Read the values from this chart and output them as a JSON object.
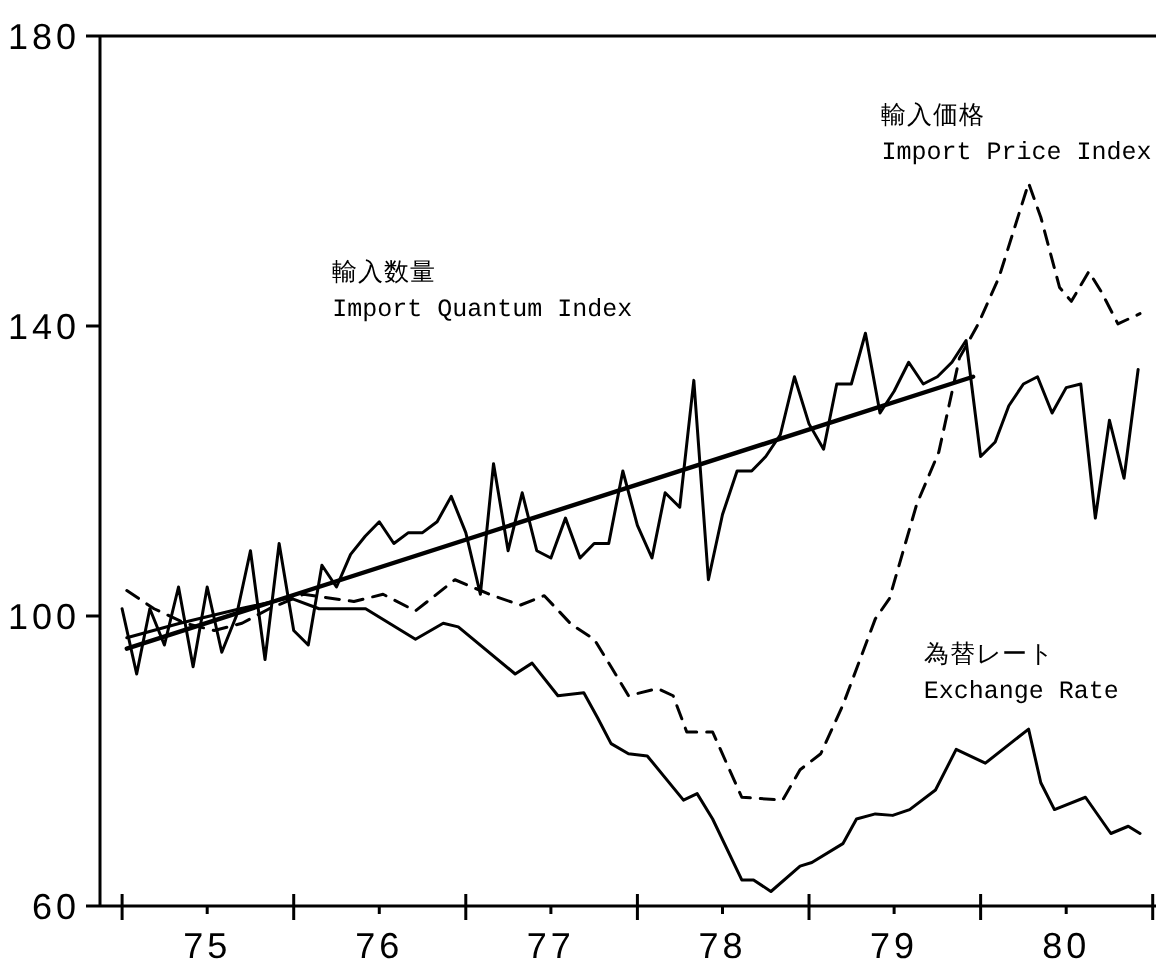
{
  "chart_data": {
    "type": "line",
    "x": [
      "1975-01",
      "1975-02",
      "1975-03",
      "1975-04",
      "1975-05",
      "1975-06",
      "1975-07",
      "1975-08",
      "1975-09",
      "1975-10",
      "1975-11",
      "1975-12",
      "1976-01",
      "1976-02",
      "1976-03",
      "1976-04",
      "1976-05",
      "1976-06",
      "1976-07",
      "1976-08",
      "1976-09",
      "1976-10",
      "1976-11",
      "1976-12",
      "1977-01",
      "1977-02",
      "1977-03",
      "1977-04",
      "1977-05",
      "1977-06",
      "1977-07",
      "1977-08",
      "1977-09",
      "1977-10",
      "1977-11",
      "1977-12",
      "1978-01",
      "1978-02",
      "1978-03",
      "1978-04",
      "1978-05",
      "1978-06",
      "1978-07",
      "1978-08",
      "1978-09",
      "1978-10",
      "1978-11",
      "1978-12",
      "1979-01",
      "1979-02",
      "1979-03",
      "1979-04",
      "1979-05",
      "1979-06",
      "1979-07",
      "1979-08",
      "1979-09",
      "1979-10",
      "1979-11",
      "1979-12",
      "1980-01",
      "1980-02",
      "1980-03",
      "1980-04",
      "1980-05",
      "1980-06",
      "1980-07",
      "1980-08",
      "1980-09",
      "1980-10",
      "1980-11",
      "1980-12"
    ],
    "series": [
      {
        "color": "#000000",
        "values": [
          101,
          92,
          101,
          96,
          104,
          93,
          104,
          95,
          100,
          109,
          94,
          110,
          98,
          96,
          107,
          104,
          108.5,
          111,
          113,
          110,
          111.5,
          111.5,
          113,
          116.5,
          111.5,
          103,
          121,
          109,
          117,
          109,
          108,
          113.5,
          108,
          110,
          110,
          120,
          112.5,
          108,
          117,
          115,
          132.5,
          105,
          114,
          120,
          120,
          122,
          125,
          133,
          126.5,
          123,
          132,
          132,
          139,
          128,
          131,
          135,
          132,
          133,
          135,
          138,
          122,
          124,
          129,
          132,
          133,
          128,
          131.5,
          132,
          113.5,
          127,
          119,
          134
        ]
      },
      {
        "color": "#000000",
        "x": [
          "1975-01-11",
          "1979-12-16"
        ],
        "values": [
          95.5,
          133
        ]
      },
      {
        "color": "#000000",
        "line_style": "dashed",
        "x": [
          "1975-01-11",
          "1975-03-10",
          "1975-05-15",
          "1975-07-16",
          "1975-09-13",
          "1975-11-10",
          "1976-01-22",
          "1976-05-08",
          "1976-07-09",
          "1976-09-16",
          "1976-12-09",
          "1977-02-20",
          "1977-04-27",
          "1977-06-17",
          "1977-08-14",
          "1977-10-01",
          "1977-11-06",
          "1977-12-13",
          "1978-02-13",
          "1978-03-18",
          "1978-04-16",
          "1978-06-10",
          "1978-08-11",
          "1978-11-06",
          "1978-12-13",
          "1979-01-26",
          "1979-03-14",
          "1979-05-22",
          "1979-06-21",
          "1979-08-18",
          "1979-10-04",
          "1979-11-17",
          "1979-12-27",
          "1980-02-09",
          "1980-04-12",
          "1980-05-08",
          "1980-06-17",
          "1980-07-12",
          "1980-08-18",
          "1980-09-13",
          "1980-10-19",
          "1980-12-05"
        ],
        "values": [
          103.5,
          101,
          99,
          98,
          99,
          101,
          103,
          102,
          103,
          100.7,
          105,
          103,
          101.5,
          102.8,
          98.8,
          96.8,
          93,
          89,
          90,
          89,
          84,
          84,
          75,
          74.6,
          78.8,
          81,
          87.7,
          99.6,
          102.4,
          115.4,
          122.6,
          135.6,
          140.3,
          146.7,
          159.7,
          155,
          145.3,
          143.4,
          147.5,
          144.8,
          140.3,
          141.7
        ]
      },
      {
        "color": "#000000",
        "x": [
          "1975-01-11",
          "1975-05-04",
          "1975-09-09",
          "1975-12-24",
          "1976-02-24",
          "1976-06-02",
          "1976-09-16",
          "1976-11-14",
          "1976-12-16",
          "1977-04-16",
          "1977-05-22",
          "1977-07-16",
          "1977-09-09",
          "1977-10-08",
          "1977-11-06",
          "1977-12-13",
          "1978-01-22",
          "1978-04-09",
          "1978-05-08",
          "1978-06-10",
          "1978-08-11",
          "1978-09-05",
          "1978-10-12",
          "1978-12-13",
          "1979-01-07",
          "1979-03-14",
          "1979-04-12",
          "1979-05-22",
          "1979-06-28",
          "1979-08-03",
          "1979-09-27",
          "1979-11-10",
          "1980-01-11",
          "1980-04-12",
          "1980-05-08",
          "1980-06-06",
          "1980-08-11",
          "1980-10-04",
          "1980-11-10",
          "1980-12-05"
        ],
        "values": [
          97,
          99,
          101,
          102.5,
          101,
          101,
          96.8,
          99,
          98.5,
          92,
          93.5,
          89,
          89.4,
          86,
          82.4,
          81,
          80.7,
          74.6,
          75.5,
          72,
          63.6,
          63.6,
          62,
          65.5,
          66,
          68.6,
          72,
          72.7,
          72.5,
          73.3,
          76,
          81.6,
          79.7,
          84.4,
          77,
          73.3,
          75,
          70,
          71,
          70
        ]
      }
    ],
    "xlim": [
      "1974-11-15",
      "1981-01-08"
    ],
    "xticks": [
      {
        "value": "1975",
        "label": null
      },
      {
        "value": "1975-07",
        "label": "75"
      },
      {
        "value": "1976",
        "label": null
      },
      {
        "value": "1976-07",
        "label": "76"
      },
      {
        "value": "1977",
        "label": null
      },
      {
        "value": "1977-07",
        "label": "77"
      },
      {
        "value": "1978",
        "label": null
      },
      {
        "value": "1978-07",
        "label": "78"
      },
      {
        "value": "1979",
        "label": null
      },
      {
        "value": "1979-07",
        "label": "79"
      },
      {
        "value": "1980",
        "label": null
      },
      {
        "value": "1980-07",
        "label": "80"
      },
      {
        "value": "1981",
        "label": null
      }
    ],
    "ylim": [
      60,
      180
    ],
    "yticks": [
      60,
      100,
      140,
      180
    ],
    "marker": "none",
    "line_style": "solid",
    "annotations": [
      "輸入数量\nImport Quantum Index",
      "輸入価格\nImport Price Index",
      "為替レート\nExchange Rate"
    ]
  }
}
